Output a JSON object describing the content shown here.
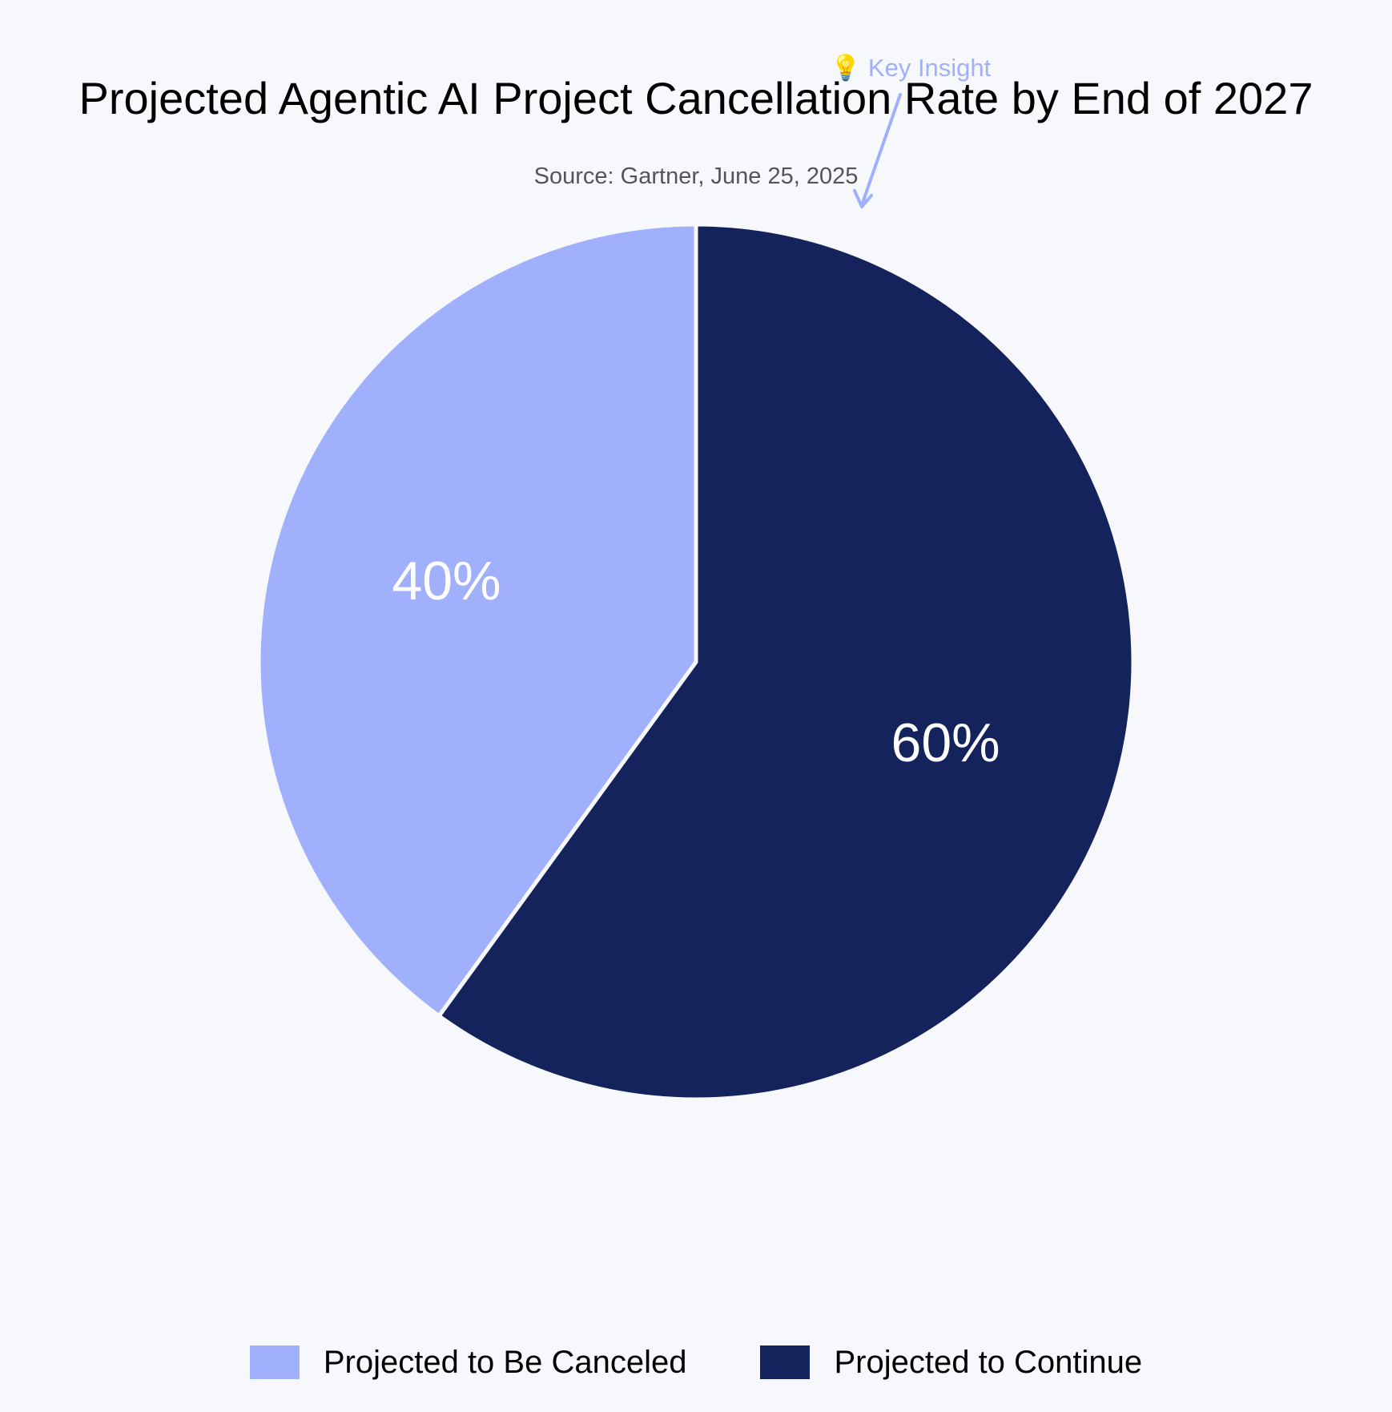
{
  "chart_data": {
    "type": "pie",
    "title": "Projected Agentic AI Project Cancellation Rate by End of 2027",
    "subtitle": "Source: Gartner, June 25, 2025",
    "categories": [
      "Projected to Continue",
      "Projected to Be Canceled"
    ],
    "values": [
      60,
      40
    ],
    "labels": [
      "60%",
      "40%"
    ],
    "colors": [
      "#14235c",
      "#a0b0fc"
    ],
    "start_angle_deg": 0,
    "direction": "clockwise",
    "legend": {
      "position": "bottom",
      "entries": [
        {
          "label": "Projected to Be Canceled",
          "color": "#a0b0fc"
        },
        {
          "label": "Projected to Continue",
          "color": "#14235c"
        }
      ]
    },
    "annotation": {
      "text": "💡 Key Insight",
      "color": "#a0b0fc"
    }
  }
}
